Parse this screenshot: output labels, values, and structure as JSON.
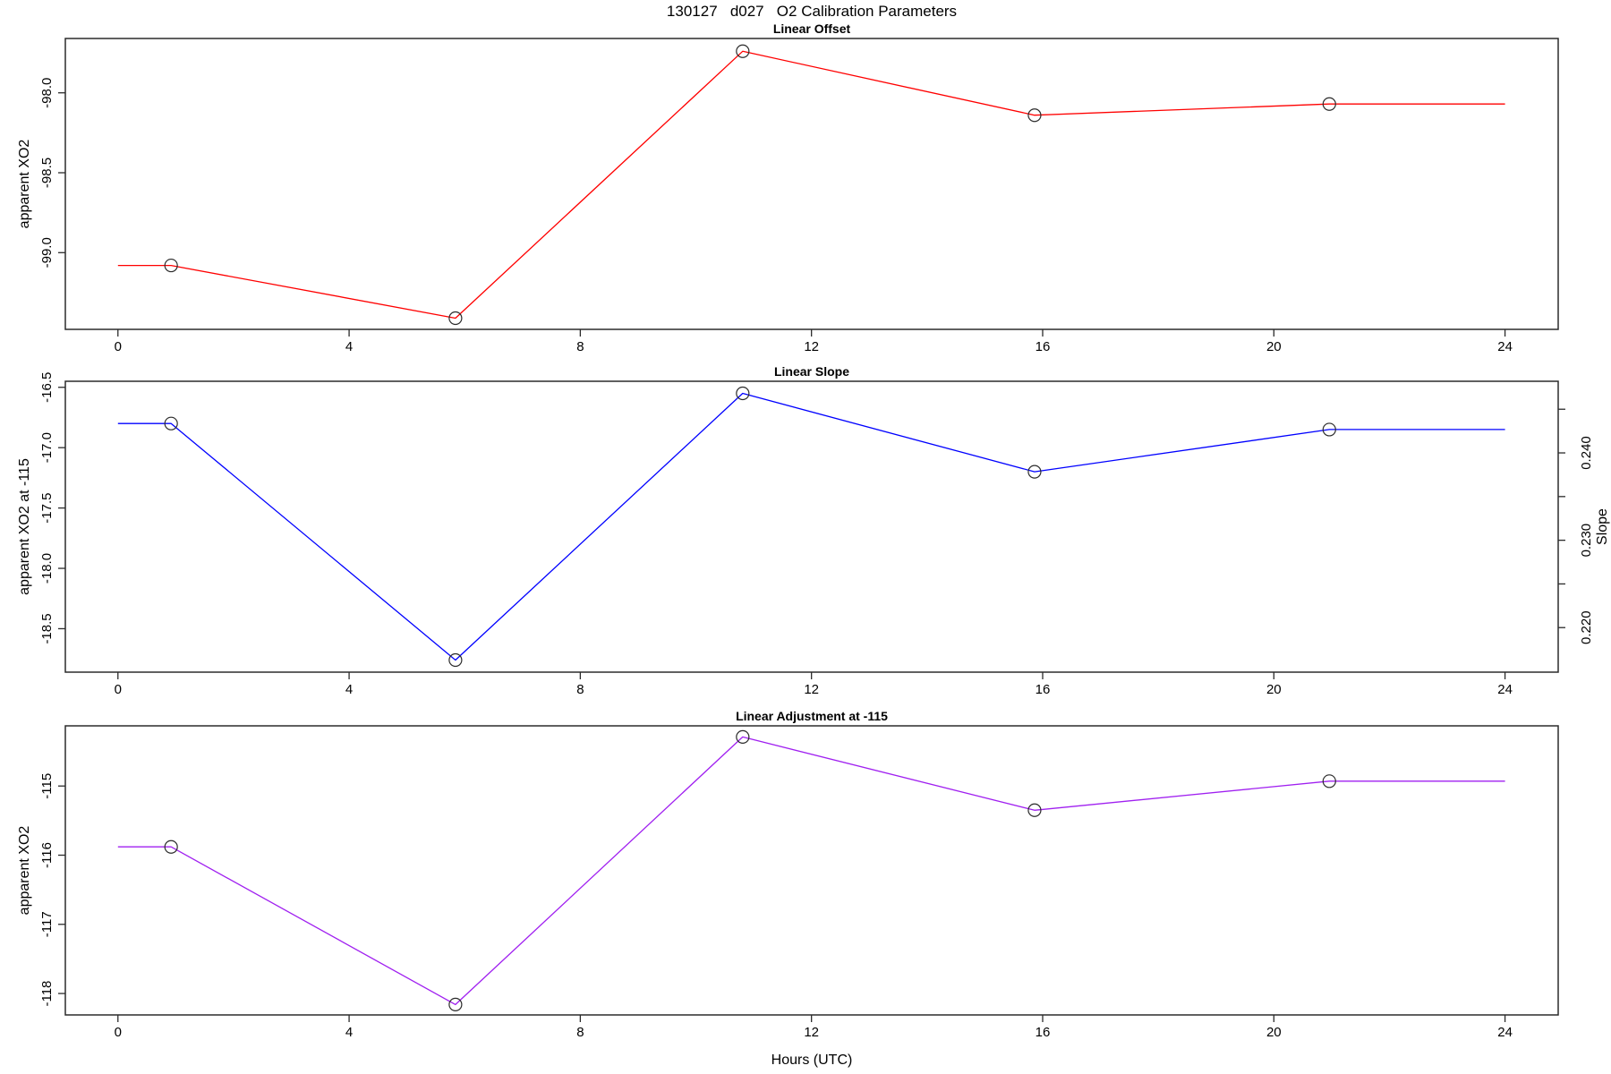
{
  "page_title": "130127   d027   O2 Calibration Parameters",
  "x_axis": {
    "label": "Hours (UTC)",
    "ticks": [
      0,
      4,
      8,
      12,
      16,
      20,
      24
    ],
    "xlim": [
      -0.91,
      24.92
    ]
  },
  "chart_data": [
    {
      "type": "line",
      "title": "Linear Offset",
      "ylabel": "apparent XO2",
      "line_color": "#FF0000",
      "x": [
        0.92,
        5.84,
        10.81,
        15.86,
        20.96
      ],
      "values": [
        -99.08,
        -99.41,
        -97.74,
        -98.14,
        -98.07
      ],
      "line_extends_x": [
        0,
        24
      ],
      "yticks": [
        -98.0,
        -98.5,
        -99.0
      ],
      "ytick_labels": [
        "-98.0",
        "-98.5",
        "-99.0"
      ],
      "ylim": [
        -99.48,
        -97.66
      ],
      "grid": false
    },
    {
      "type": "line",
      "title": "Linear Slope",
      "ylabel": "apparent XO2 at -115",
      "ylabel_right": "Slope",
      "line_color": "#0000FF",
      "x": [
        0.92,
        5.84,
        10.81,
        15.86,
        20.96
      ],
      "values": [
        -16.8,
        -18.76,
        -16.55,
        -17.2,
        -16.85
      ],
      "values_right_scale": [
        0.2433,
        0.2163,
        0.2468,
        0.2378,
        0.2426
      ],
      "line_extends_x": [
        0,
        24
      ],
      "yticks": [
        -16.5,
        -17.0,
        -17.5,
        -18.0,
        -18.5
      ],
      "ytick_labels": [
        "-16.5",
        "-17.0",
        "-17.5",
        "-18.0",
        "-18.5"
      ],
      "ylim": [
        -18.86,
        -16.45
      ],
      "yticks_right": [
        0.245,
        0.24,
        0.235,
        0.23,
        0.225,
        0.22
      ],
      "ytick_right_labels": [
        "",
        "0.240",
        "",
        "0.230",
        "",
        "0.220"
      ],
      "ylim_right": [
        0.2149,
        0.2482
      ],
      "grid": false
    },
    {
      "type": "line",
      "title": "Linear Adjustment at -115",
      "ylabel": "apparent XO2",
      "line_color": "#A020F0",
      "x": [
        0.92,
        5.84,
        10.81,
        15.86,
        20.96
      ],
      "values": [
        -115.88,
        -118.16,
        -114.29,
        -115.35,
        -114.93
      ],
      "line_extends_x": [
        0,
        24
      ],
      "yticks": [
        -115,
        -116,
        -117,
        -118
      ],
      "ytick_labels": [
        "-115",
        "-116",
        "-117",
        "-118"
      ],
      "ylim": [
        -118.31,
        -114.13
      ],
      "grid": false
    }
  ],
  "style": {
    "frame_color": "#2b2b2b",
    "marker": "open-circle",
    "marker_color": "#2b2b2b",
    "background": "#ffffff"
  }
}
